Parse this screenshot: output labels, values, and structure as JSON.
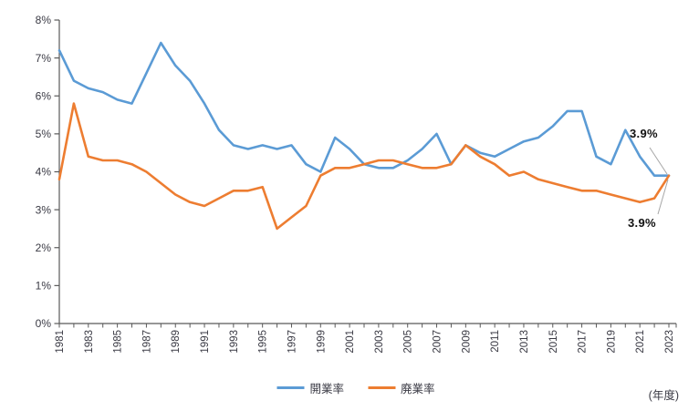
{
  "chart_data": {
    "type": "line",
    "title": "",
    "axis_unit_label": "(年度)",
    "ylim": [
      0,
      8
    ],
    "ytick_step": 1,
    "ytick_suffix": "%",
    "grid": false,
    "legend_position": "bottom-center",
    "axis_color": "#595959",
    "tick_label_color": "#3a3a44",
    "leader_line_color": "#a6a6a6",
    "years": [
      1981,
      1982,
      1983,
      1984,
      1985,
      1986,
      1987,
      1988,
      1989,
      1990,
      1991,
      1992,
      1993,
      1994,
      1995,
      1996,
      1997,
      1998,
      1999,
      2000,
      2001,
      2002,
      2003,
      2004,
      2005,
      2006,
      2007,
      2008,
      2009,
      2010,
      2011,
      2012,
      2013,
      2014,
      2015,
      2016,
      2017,
      2018,
      2019,
      2020,
      2021,
      2022,
      2023
    ],
    "series": [
      {
        "name": "開業率",
        "color": "#5B9BD5",
        "values": [
          7.2,
          6.4,
          6.2,
          6.1,
          5.9,
          5.8,
          6.6,
          7.4,
          6.8,
          6.4,
          5.8,
          5.1,
          4.7,
          4.6,
          4.7,
          4.6,
          4.7,
          4.2,
          4.0,
          4.9,
          4.6,
          4.2,
          4.1,
          4.1,
          4.3,
          4.6,
          5.0,
          4.2,
          4.7,
          4.5,
          4.4,
          4.6,
          4.8,
          4.9,
          5.2,
          5.6,
          5.6,
          4.4,
          4.2,
          5.1,
          4.4,
          3.9,
          3.9
        ]
      },
      {
        "name": "廃業率",
        "color": "#ED7D31",
        "values": [
          3.8,
          5.8,
          4.4,
          4.3,
          4.3,
          4.2,
          4.0,
          3.7,
          3.4,
          3.2,
          3.1,
          3.3,
          3.5,
          3.5,
          3.6,
          2.5,
          2.8,
          3.1,
          3.9,
          4.1,
          4.1,
          4.2,
          4.3,
          4.3,
          4.2,
          4.1,
          4.1,
          4.2,
          4.7,
          4.4,
          4.2,
          3.9,
          4.0,
          3.8,
          3.7,
          3.6,
          3.5,
          3.5,
          3.4,
          3.3,
          3.2,
          3.3,
          3.9
        ]
      }
    ],
    "annotations": [
      {
        "text": "3.9%",
        "series": "開業率",
        "year": 2023
      },
      {
        "text": "3.9%",
        "series": "廃業率",
        "year": 2023
      }
    ]
  }
}
